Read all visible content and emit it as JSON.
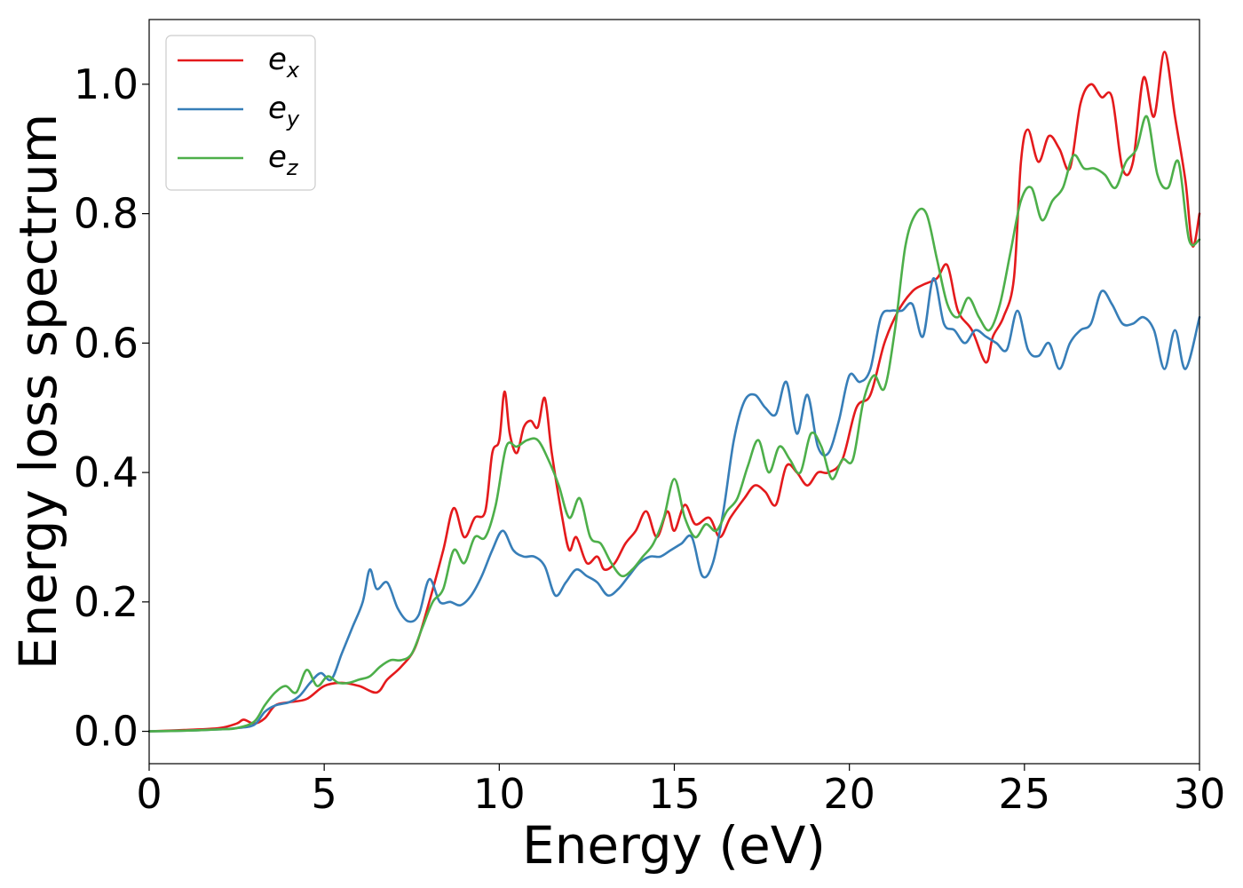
{
  "chart_data": {
    "type": "line",
    "xlabel": "Energy (eV)",
    "ylabel": "Energy loss spectrum",
    "xlim": [
      0,
      30
    ],
    "ylim": [
      -0.05,
      1.1
    ],
    "xticks": [
      0,
      5,
      10,
      15,
      20,
      25,
      30
    ],
    "xtick_labels": [
      "0",
      "5",
      "10",
      "15",
      "20",
      "25",
      "30"
    ],
    "yticks": [
      0.0,
      0.2,
      0.4,
      0.6,
      0.8,
      1.0
    ],
    "ytick_labels": [
      "0.0",
      "0.2",
      "0.4",
      "0.6",
      "0.8",
      "1.0"
    ],
    "grid": false,
    "legend_position": "top-left",
    "series": [
      {
        "name": "e_x",
        "legend_base": "e",
        "legend_sub": "x",
        "color": "#e41a1c",
        "x": [
          0,
          1,
          2,
          2.5,
          2.7,
          3.0,
          3.3,
          3.6,
          4.0,
          4.5,
          5.0,
          5.5,
          6.0,
          6.5,
          6.8,
          7.2,
          7.6,
          8.0,
          8.4,
          8.7,
          9.0,
          9.3,
          9.6,
          9.8,
          10.0,
          10.15,
          10.3,
          10.5,
          10.7,
          10.9,
          11.1,
          11.3,
          11.5,
          11.8,
          12.0,
          12.2,
          12.5,
          12.8,
          13.0,
          13.3,
          13.6,
          13.9,
          14.2,
          14.5,
          14.8,
          15.0,
          15.3,
          15.6,
          16.0,
          16.3,
          16.6,
          17.0,
          17.3,
          17.6,
          17.9,
          18.2,
          18.5,
          18.8,
          19.1,
          19.4,
          19.8,
          20.2,
          20.6,
          21.0,
          21.4,
          21.8,
          22.1,
          22.5,
          22.8,
          23.1,
          23.5,
          23.9,
          24.1,
          24.4,
          24.7,
          24.9,
          25.1,
          25.4,
          25.7,
          26.0,
          26.3,
          26.6,
          26.9,
          27.2,
          27.5,
          27.8,
          28.1,
          28.4,
          28.7,
          29.0,
          29.3,
          29.6,
          29.8,
          30.0
        ],
        "y": [
          0,
          0.002,
          0.005,
          0.012,
          0.018,
          0.012,
          0.02,
          0.04,
          0.045,
          0.05,
          0.07,
          0.075,
          0.07,
          0.06,
          0.08,
          0.1,
          0.13,
          0.2,
          0.28,
          0.345,
          0.3,
          0.33,
          0.34,
          0.43,
          0.45,
          0.525,
          0.46,
          0.43,
          0.47,
          0.48,
          0.47,
          0.515,
          0.43,
          0.33,
          0.28,
          0.3,
          0.26,
          0.27,
          0.25,
          0.26,
          0.29,
          0.31,
          0.34,
          0.3,
          0.34,
          0.31,
          0.35,
          0.32,
          0.33,
          0.3,
          0.33,
          0.36,
          0.38,
          0.37,
          0.35,
          0.41,
          0.4,
          0.38,
          0.4,
          0.4,
          0.42,
          0.5,
          0.52,
          0.6,
          0.65,
          0.68,
          0.69,
          0.7,
          0.72,
          0.65,
          0.62,
          0.57,
          0.61,
          0.64,
          0.7,
          0.88,
          0.93,
          0.88,
          0.92,
          0.9,
          0.87,
          0.97,
          1.0,
          0.98,
          0.98,
          0.87,
          0.88,
          1.01,
          0.95,
          1.05,
          0.95,
          0.85,
          0.75,
          0.8
        ]
      },
      {
        "name": "e_y",
        "legend_base": "e",
        "legend_sub": "y",
        "color": "#377eb8",
        "x": [
          0,
          1,
          2,
          2.5,
          3.0,
          3.3,
          3.6,
          4.0,
          4.3,
          4.6,
          4.9,
          5.2,
          5.5,
          5.8,
          6.1,
          6.3,
          6.5,
          6.8,
          7.1,
          7.4,
          7.7,
          8.0,
          8.3,
          8.6,
          8.9,
          9.2,
          9.5,
          9.8,
          10.1,
          10.4,
          10.7,
          11.0,
          11.3,
          11.6,
          11.9,
          12.2,
          12.5,
          12.8,
          13.1,
          13.4,
          13.7,
          14.0,
          14.3,
          14.6,
          14.9,
          15.2,
          15.5,
          15.8,
          16.1,
          16.4,
          16.7,
          17.0,
          17.3,
          17.6,
          17.9,
          18.2,
          18.5,
          18.8,
          19.1,
          19.4,
          19.7,
          20.0,
          20.3,
          20.6,
          20.9,
          21.2,
          21.5,
          21.8,
          22.1,
          22.4,
          22.7,
          23.0,
          23.3,
          23.6,
          23.9,
          24.2,
          24.5,
          24.8,
          25.1,
          25.4,
          25.7,
          26.0,
          26.3,
          26.6,
          26.9,
          27.2,
          27.5,
          27.8,
          28.1,
          28.4,
          28.7,
          29.0,
          29.3,
          29.6,
          30.0
        ],
        "y": [
          0,
          0.001,
          0.003,
          0.005,
          0.01,
          0.03,
          0.04,
          0.045,
          0.055,
          0.075,
          0.09,
          0.08,
          0.12,
          0.16,
          0.2,
          0.25,
          0.22,
          0.23,
          0.19,
          0.17,
          0.18,
          0.235,
          0.2,
          0.2,
          0.195,
          0.21,
          0.24,
          0.28,
          0.31,
          0.28,
          0.27,
          0.27,
          0.255,
          0.21,
          0.23,
          0.25,
          0.24,
          0.23,
          0.21,
          0.22,
          0.24,
          0.26,
          0.27,
          0.27,
          0.28,
          0.29,
          0.3,
          0.24,
          0.26,
          0.34,
          0.45,
          0.51,
          0.52,
          0.5,
          0.49,
          0.54,
          0.46,
          0.52,
          0.44,
          0.43,
          0.48,
          0.55,
          0.54,
          0.56,
          0.64,
          0.65,
          0.65,
          0.66,
          0.61,
          0.7,
          0.63,
          0.62,
          0.6,
          0.62,
          0.61,
          0.6,
          0.59,
          0.65,
          0.59,
          0.58,
          0.6,
          0.56,
          0.6,
          0.62,
          0.63,
          0.68,
          0.66,
          0.63,
          0.63,
          0.64,
          0.62,
          0.56,
          0.62,
          0.56,
          0.64
        ]
      },
      {
        "name": "e_z",
        "legend_base": "e",
        "legend_sub": "z",
        "color": "#4daf4a",
        "x": [
          0,
          1,
          2,
          2.5,
          3.0,
          3.3,
          3.6,
          3.9,
          4.2,
          4.5,
          4.8,
          5.1,
          5.4,
          5.7,
          6.0,
          6.3,
          6.6,
          6.9,
          7.2,
          7.5,
          7.8,
          8.1,
          8.4,
          8.7,
          9.0,
          9.3,
          9.6,
          9.9,
          10.2,
          10.5,
          10.8,
          11.1,
          11.4,
          11.7,
          12.0,
          12.3,
          12.6,
          12.9,
          13.2,
          13.5,
          13.8,
          14.1,
          14.4,
          14.7,
          15.0,
          15.3,
          15.6,
          15.9,
          16.2,
          16.5,
          16.8,
          17.1,
          17.4,
          17.7,
          18.0,
          18.3,
          18.6,
          18.9,
          19.2,
          19.5,
          19.8,
          20.1,
          20.4,
          20.7,
          21.0,
          21.3,
          21.6,
          21.9,
          22.2,
          22.5,
          22.8,
          23.1,
          23.4,
          23.7,
          24.0,
          24.3,
          24.6,
          24.9,
          25.2,
          25.5,
          25.8,
          26.1,
          26.4,
          26.7,
          27.0,
          27.3,
          27.6,
          27.9,
          28.2,
          28.5,
          28.8,
          29.1,
          29.4,
          29.7,
          30.0
        ],
        "y": [
          0,
          0.001,
          0.003,
          0.005,
          0.015,
          0.04,
          0.06,
          0.07,
          0.06,
          0.095,
          0.07,
          0.085,
          0.075,
          0.075,
          0.08,
          0.085,
          0.1,
          0.11,
          0.11,
          0.12,
          0.16,
          0.2,
          0.22,
          0.28,
          0.26,
          0.3,
          0.3,
          0.35,
          0.44,
          0.44,
          0.45,
          0.45,
          0.42,
          0.38,
          0.33,
          0.36,
          0.3,
          0.29,
          0.26,
          0.24,
          0.25,
          0.27,
          0.29,
          0.33,
          0.39,
          0.33,
          0.3,
          0.32,
          0.31,
          0.34,
          0.36,
          0.41,
          0.45,
          0.4,
          0.44,
          0.42,
          0.4,
          0.46,
          0.44,
          0.39,
          0.42,
          0.42,
          0.51,
          0.55,
          0.53,
          0.62,
          0.75,
          0.8,
          0.8,
          0.73,
          0.66,
          0.64,
          0.67,
          0.64,
          0.62,
          0.66,
          0.74,
          0.82,
          0.84,
          0.79,
          0.82,
          0.84,
          0.89,
          0.87,
          0.87,
          0.86,
          0.84,
          0.88,
          0.9,
          0.95,
          0.86,
          0.84,
          0.88,
          0.76,
          0.76
        ]
      }
    ]
  }
}
